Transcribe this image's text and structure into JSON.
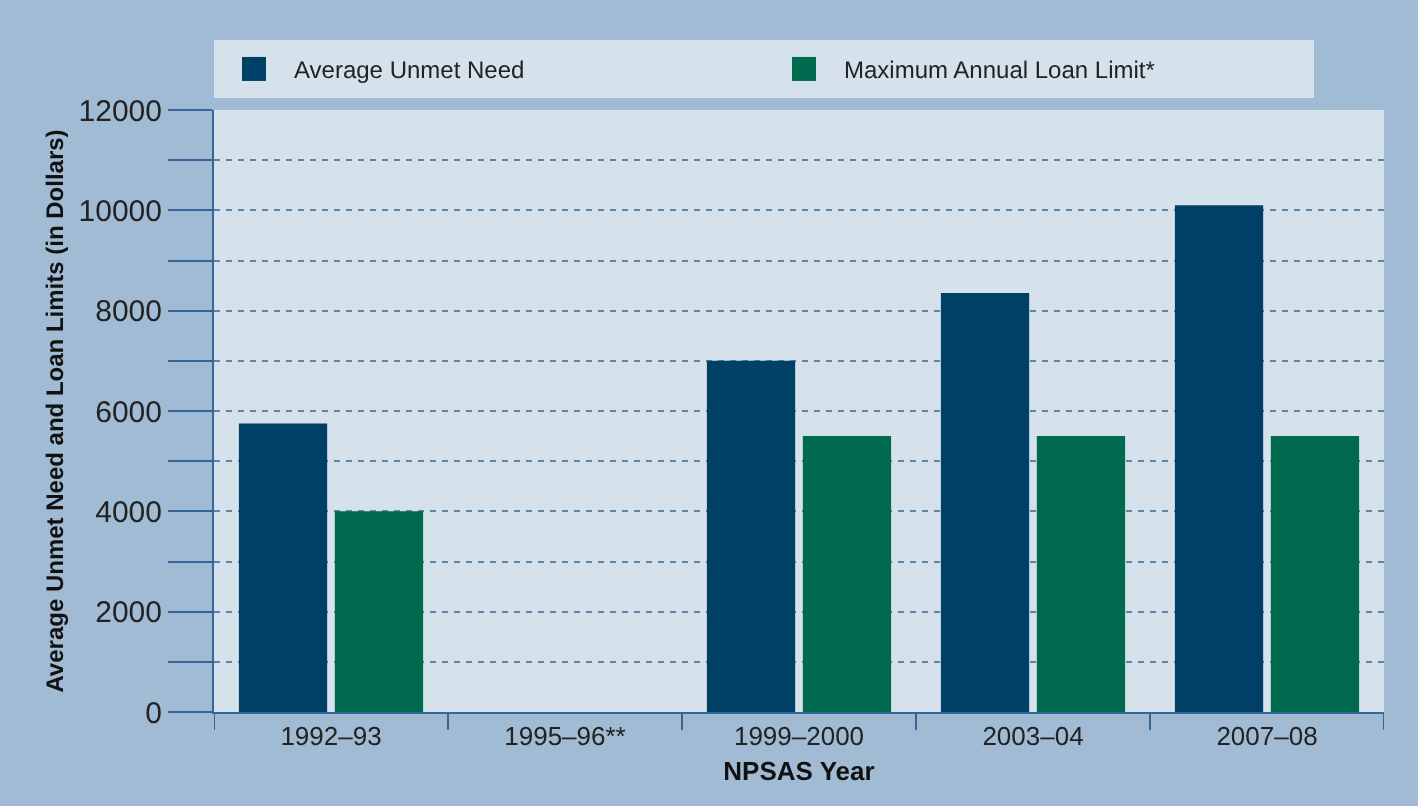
{
  "chart_data": {
    "type": "bar",
    "xlabel": "NPSAS Year",
    "ylabel": "Average Unmet Need and Loan Limits (in Dollars)",
    "categories": [
      "1992–93",
      "1995–96**",
      "1999–2000",
      "2003–04",
      "2007–08"
    ],
    "series": [
      {
        "name": "Average Unmet Need",
        "color": "#004066",
        "values": [
          5750,
          null,
          7000,
          8350,
          10100
        ]
      },
      {
        "name": "Maximum Annual Loan Limit*",
        "color": "#006a4e",
        "values": [
          4000,
          null,
          5500,
          5500,
          5500
        ]
      }
    ],
    "ylim": [
      0,
      12000
    ],
    "yticks": [
      0,
      {
        "value": 1000,
        "label": null
      },
      2000,
      {
        "value": 3000,
        "label": null
      },
      4000,
      {
        "value": 5000,
        "label": null
      },
      6000,
      {
        "value": 7000,
        "label": null
      },
      8000,
      {
        "value": 9000,
        "label": null
      },
      10000,
      {
        "value": 11000,
        "label": null
      },
      12000
    ],
    "grid": "y",
    "legend": "top"
  }
}
